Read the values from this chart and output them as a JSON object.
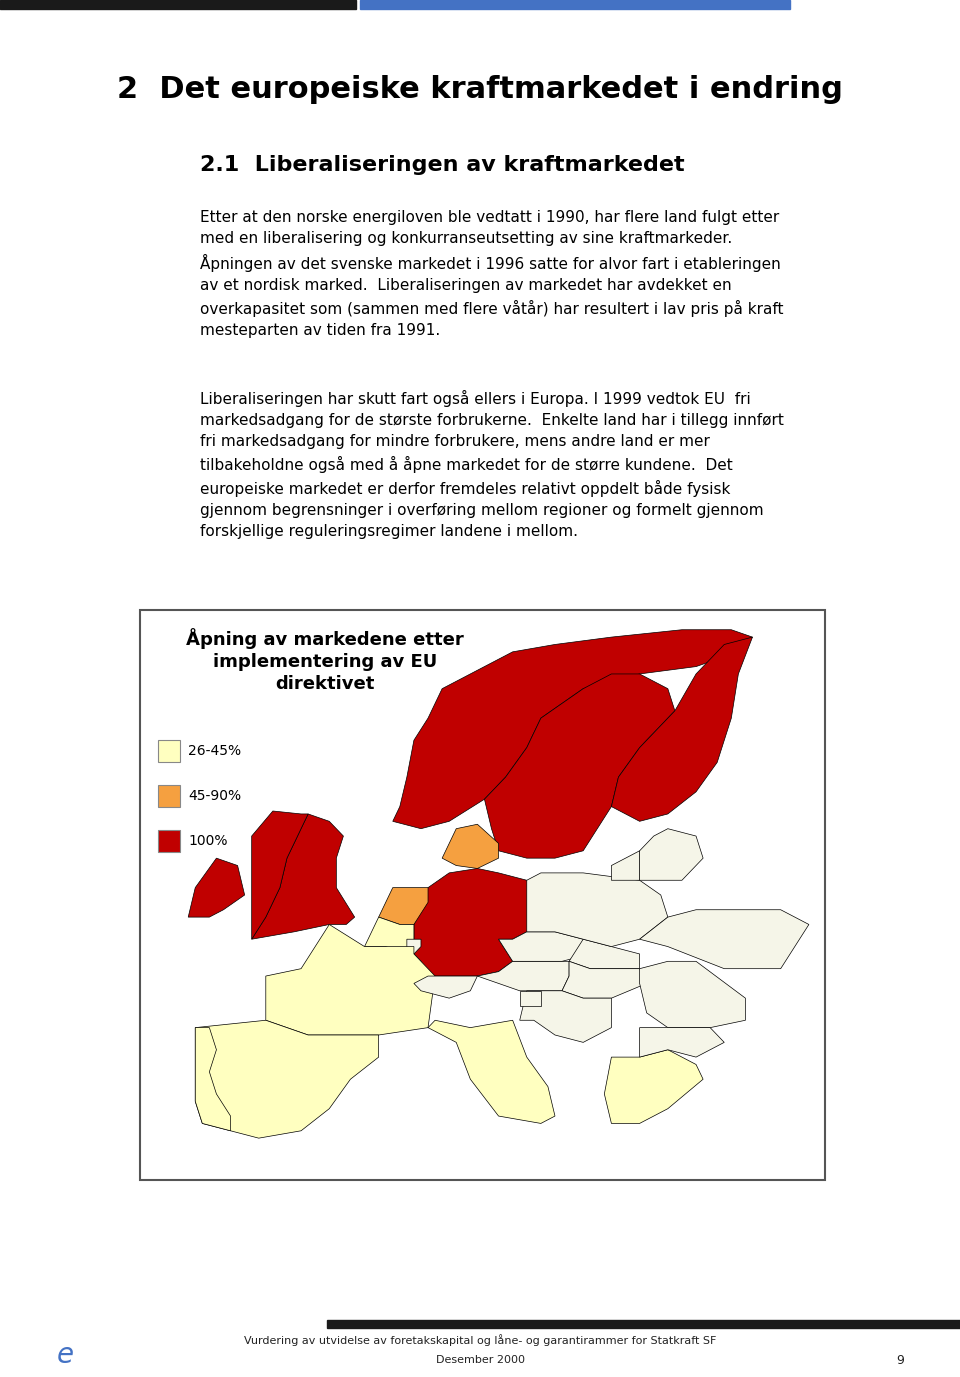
{
  "page_bg": "#ffffff",
  "header_bar_color": "#4472c4",
  "chapter_title": "2  Det europeiske kraftmarkedet i endring",
  "section_title": "2.1  Liberaliseringen av kraftmarkedet",
  "paragraph1": "Etter at den norske energiloven ble vedtatt i 1990, har flere land fulgt etter\nmed en liberalisering og konkurranseutsetting av sine kraftmarkeder.\nÅpningen av det svenske markedet i 1996 satte for alvor fart i etableringen\nav et nordisk marked.  Liberaliseringen av markedet har avdekket en\noverkapasitet som (sammen med flere våtår) har resultert i lav pris på kraft\nmesteparten av tiden fra 1991.",
  "paragraph2": "Liberaliseringen har skutt fart også ellers i Europa. I 1999 vedtok EU  fri\nmarkedsadgang for de største forbrukerne.  Enkelte land har i tillegg innført\nfri markedsadgang for mindre forbrukere, mens andre land er mer\ntilbakeholdne også med å åpne markedet for de større kundene.  Det\neuropeiske markedet er derfor fremdeles relativt oppdelt både fysisk\ngjennom begrensninger i overføring mellom regioner og formelt gjennom\nforskjellige reguleringsregimer landene i mellom.",
  "map_title_line1": "Åpning av markedene etter",
  "map_title_line2": "implementering av EU",
  "map_title_line3": "direktivet",
  "legend_26_45": "26-45%",
  "legend_45_90": "45-90%",
  "legend_100": "100%",
  "legend_color_26_45": "#ffffc0",
  "legend_color_45_90": "#f5a040",
  "legend_color_100": "#c00000",
  "country_color_none": "#f5f5e8",
  "footer_letter": "e",
  "footer_letter_color": "#4472c4",
  "footer_text": "Vurdering av utvidelse av foretakskapital og låne- og garantirammer for Statkraft SF",
  "footer_text2": "Desember 2000",
  "footer_page": "9"
}
